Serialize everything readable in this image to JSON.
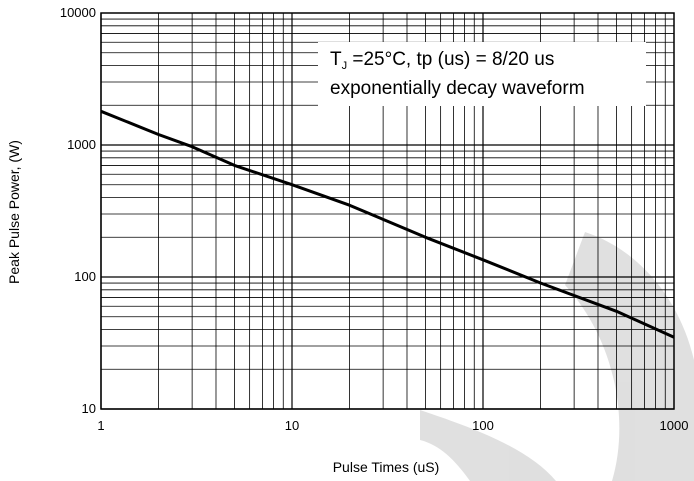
{
  "chart_data": {
    "type": "line",
    "title": "",
    "xlabel": "Pulse Times (uS)",
    "ylabel": "Peak Pulse Power, (W)",
    "x_scale": "log",
    "y_scale": "log",
    "xlim": [
      1,
      1000
    ],
    "ylim": [
      10,
      10000
    ],
    "x_ticks": [
      "1",
      "10",
      "100",
      "1000"
    ],
    "y_ticks": [
      "10",
      "100",
      "1000",
      "10000"
    ],
    "grid": true,
    "legend": "none",
    "colors": {
      "line": "#000000",
      "grid": "#000000",
      "watermark": "#000000"
    },
    "annotation": {
      "line1_prefix": "T",
      "line1_sub": "J",
      "line1_rest": " =25°C, tp (us) = 8/20 us",
      "line2": "exponentially decay waveform",
      "placement": "top-right"
    },
    "series": [
      {
        "x": [
          1,
          2,
          3,
          5,
          10,
          20,
          50,
          100,
          200,
          500,
          1000
        ],
        "y": [
          1800,
          1200,
          970,
          700,
          500,
          350,
          200,
          135,
          90,
          55,
          35
        ]
      }
    ]
  }
}
